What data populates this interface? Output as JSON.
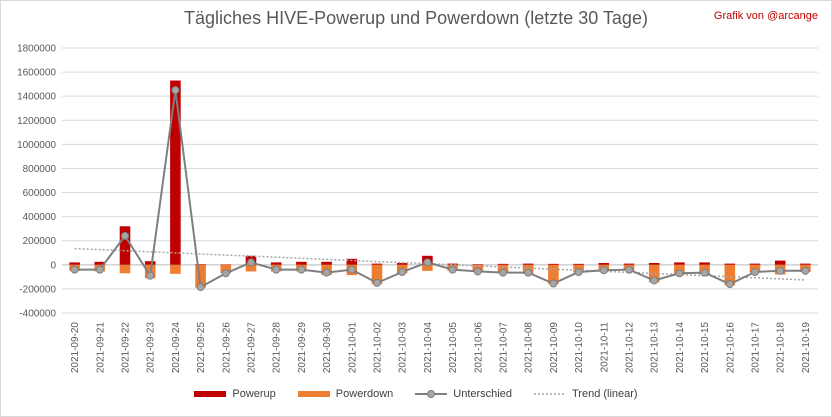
{
  "title": "Tägliches HIVE-Powerup und Powerdown (letzte 30 Tage)",
  "credit": "Grafik von @arcange",
  "colors": {
    "powerup": "#c00000",
    "powerdown": "#ed7d31",
    "diff": "#7f7f7f",
    "trend": "#a6a6a6",
    "grid": "#d9d9d9",
    "axis_text": "#595959"
  },
  "chart_data": {
    "type": "bar",
    "title": "Tägliches HIVE-Powerup und Powerdown (letzte 30 Tage)",
    "xlabel": "",
    "ylabel": "",
    "ylim": [
      -400000,
      1800000
    ],
    "yticks": [
      1800000,
      1600000,
      1400000,
      1200000,
      1000000,
      800000,
      600000,
      400000,
      200000,
      0,
      -200000,
      -400000
    ],
    "ytick_labels": [
      "1800000",
      "1600000",
      "1400000",
      "1200000",
      "1000000",
      "800000",
      "600000",
      "400000",
      "200000",
      "0",
      "-200000",
      "-400000"
    ],
    "grid": true,
    "legend_position": "bottom",
    "categories": [
      "2021-09-20",
      "2021-09-21",
      "2021-09-22",
      "2021-09-23",
      "2021-09-24",
      "2021-09-25",
      "2021-09-26",
      "2021-09-27",
      "2021-09-28",
      "2021-09-29",
      "2021-09-30",
      "2021-10-01",
      "2021-10-02",
      "2021-10-03",
      "2021-10-04",
      "2021-10-05",
      "2021-10-06",
      "2021-10-07",
      "2021-10-08",
      "2021-10-09",
      "2021-10-10",
      "2021-10-11",
      "2021-10-12",
      "2021-10-13",
      "2021-10-14",
      "2021-10-15",
      "2021-10-16",
      "2021-10-17",
      "2021-10-18",
      "2021-10-19"
    ],
    "series": [
      {
        "name": "Powerup",
        "type": "bar",
        "values": [
          20000,
          25000,
          320000,
          30000,
          1530000,
          5000,
          3000,
          75000,
          20000,
          25000,
          25000,
          50000,
          10000,
          15000,
          75000,
          10000,
          5000,
          8000,
          10000,
          8000,
          8000,
          15000,
          10000,
          15000,
          20000,
          20000,
          10000,
          10000,
          35000,
          10000
        ]
      },
      {
        "name": "Powerdown",
        "type": "bar",
        "values": [
          -50000,
          -55000,
          -70000,
          -110000,
          -75000,
          -190000,
          -70000,
          -55000,
          -55000,
          -55000,
          -85000,
          -85000,
          -160000,
          -70000,
          -50000,
          -50000,
          -60000,
          -70000,
          -75000,
          -160000,
          -65000,
          -55000,
          -45000,
          -145000,
          -85000,
          -80000,
          -170000,
          -65000,
          -80000,
          -60000
        ]
      },
      {
        "name": "Unterschied",
        "type": "line",
        "values": [
          -40000,
          -40000,
          240000,
          -90000,
          1450000,
          -185000,
          -70000,
          20000,
          -40000,
          -40000,
          -65000,
          -40000,
          -150000,
          -60000,
          20000,
          -40000,
          -55000,
          -65000,
          -65000,
          -155000,
          -60000,
          -45000,
          -40000,
          -130000,
          -70000,
          -65000,
          -160000,
          -60000,
          -50000,
          -50000
        ]
      },
      {
        "name": "Trend (linear)",
        "type": "trend",
        "values": [
          135000,
          126000,
          117000,
          108000,
          99000,
          90000,
          81000,
          72000,
          63000,
          54000,
          45000,
          36000,
          27000,
          18000,
          9000,
          0,
          -9000,
          -18000,
          -27000,
          -36000,
          -45000,
          -54000,
          -63000,
          -72000,
          -81000,
          -90000,
          -99000,
          -108000,
          -117000,
          -126000
        ]
      }
    ]
  }
}
